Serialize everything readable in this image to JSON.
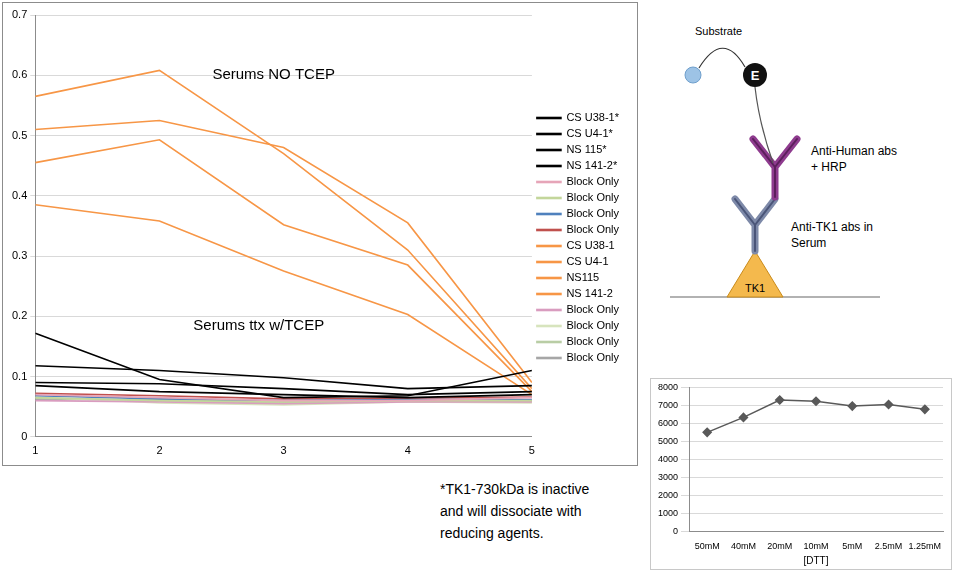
{
  "chart_data": [
    {
      "type": "line",
      "x": [
        1,
        2,
        3,
        4,
        5
      ],
      "xlim": [
        1,
        5
      ],
      "xticks": [
        1,
        2,
        3,
        4,
        5
      ],
      "ylim": [
        0,
        0.7
      ],
      "yticks": [
        0,
        0.1,
        0.2,
        0.3,
        0.4,
        0.5,
        0.6,
        0.7
      ],
      "grid": "y",
      "legend": "right",
      "marker": "none",
      "annotations": [
        "Serums NO TCEP",
        "Serums ttx w/TCEP"
      ],
      "series": [
        {
          "name": "CS U38-1*",
          "color": "#000000",
          "values": [
            0.172,
            0.095,
            0.065,
            0.068,
            0.11
          ]
        },
        {
          "name": "CS U4-1*",
          "color": "#000000",
          "values": [
            0.118,
            0.11,
            0.098,
            0.08,
            0.085
          ]
        },
        {
          "name": "NS 115*",
          "color": "#000000",
          "values": [
            0.09,
            0.088,
            0.08,
            0.07,
            0.075
          ]
        },
        {
          "name": "NS 141-2*",
          "color": "#000000",
          "values": [
            0.085,
            0.075,
            0.07,
            0.065,
            0.07
          ]
        },
        {
          "name": "Block Only",
          "color": "#e6a5b8",
          "values": [
            0.07,
            0.065,
            0.06,
            0.06,
            0.065
          ]
        },
        {
          "name": "Block Only",
          "color": "#c3d69b",
          "values": [
            0.065,
            0.06,
            0.058,
            0.06,
            0.06
          ]
        },
        {
          "name": "Block Only",
          "color": "#4f81bd",
          "values": [
            0.068,
            0.063,
            0.06,
            0.062,
            0.062
          ]
        },
        {
          "name": "Block Only",
          "color": "#c0504d",
          "values": [
            0.072,
            0.068,
            0.063,
            0.064,
            0.066
          ]
        },
        {
          "name": "CS U38-1",
          "color": "#f79646",
          "values": [
            0.565,
            0.608,
            0.47,
            0.31,
            0.08
          ]
        },
        {
          "name": "CS U4-1",
          "color": "#f79646",
          "values": [
            0.51,
            0.525,
            0.48,
            0.355,
            0.09
          ]
        },
        {
          "name": "NS115",
          "color": "#f79646",
          "values": [
            0.455,
            0.493,
            0.352,
            0.285,
            0.075
          ]
        },
        {
          "name": "NS 141-2",
          "color": "#f79646",
          "values": [
            0.385,
            0.358,
            0.275,
            0.203,
            0.07
          ]
        },
        {
          "name": "Block Only",
          "color": "#d99cbf",
          "values": [
            0.06,
            0.058,
            0.055,
            0.058,
            0.058
          ]
        },
        {
          "name": "Block Only",
          "color": "#d7e4bd",
          "values": [
            0.066,
            0.056,
            0.053,
            0.058,
            0.056
          ]
        },
        {
          "name": "Block Only",
          "color": "#b9cda5",
          "values": [
            0.064,
            0.06,
            0.056,
            0.06,
            0.058
          ]
        },
        {
          "name": "Block Only",
          "color": "#a6a6a6",
          "values": [
            0.062,
            0.062,
            0.058,
            0.06,
            0.06
          ]
        }
      ]
    },
    {
      "type": "line",
      "categories": [
        "50mM",
        "40mM",
        "20mM",
        "10mM",
        "5mM",
        "2.5mM",
        "1.25mM"
      ],
      "values": [
        5500,
        6330,
        7300,
        7230,
        6960,
        7050,
        6780
      ],
      "color": "#595959",
      "marker": "diamond",
      "x_label": "[DTT]",
      "ylim": [
        0,
        8000
      ],
      "yticks": [
        0,
        1000,
        2000,
        3000,
        4000,
        5000,
        6000,
        7000,
        8000
      ],
      "grid": "y"
    }
  ],
  "diagram": {
    "substrate": "Substrate",
    "enzyme": "E",
    "secondary": [
      "Anti-Human abs",
      "+ HRP"
    ],
    "primary": [
      "Anti-TK1 abs in",
      "Serum"
    ],
    "antigen": "TK1"
  },
  "note": [
    "*TK1-730kDa is inactive",
    "and will dissociate with",
    "reducing agents."
  ]
}
